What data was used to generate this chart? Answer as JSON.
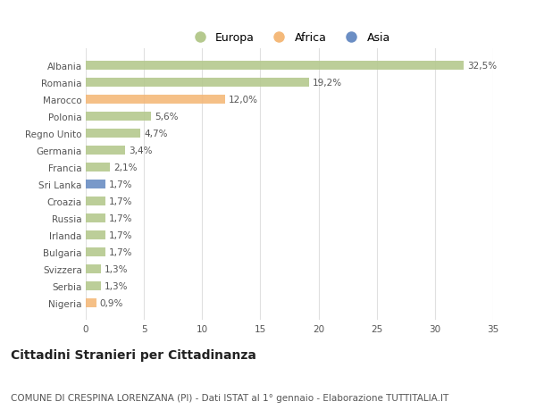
{
  "categories": [
    "Albania",
    "Romania",
    "Marocco",
    "Polonia",
    "Regno Unito",
    "Germania",
    "Francia",
    "Sri Lanka",
    "Croazia",
    "Russia",
    "Irlanda",
    "Bulgaria",
    "Svizzera",
    "Serbia",
    "Nigeria"
  ],
  "values": [
    32.5,
    19.2,
    12.0,
    5.6,
    4.7,
    3.4,
    2.1,
    1.7,
    1.7,
    1.7,
    1.7,
    1.7,
    1.3,
    1.3,
    0.9
  ],
  "labels": [
    "32,5%",
    "19,2%",
    "12,0%",
    "5,6%",
    "4,7%",
    "3,4%",
    "2,1%",
    "1,7%",
    "1,7%",
    "1,7%",
    "1,7%",
    "1,7%",
    "1,3%",
    "1,3%",
    "0,9%"
  ],
  "bar_colors": [
    "#b5c98e",
    "#b5c98e",
    "#f4b97a",
    "#b5c98e",
    "#b5c98e",
    "#b5c98e",
    "#b5c98e",
    "#6b8ec4",
    "#b5c98e",
    "#b5c98e",
    "#b5c98e",
    "#b5c98e",
    "#b5c98e",
    "#b5c98e",
    "#f4b97a"
  ],
  "legend_labels": [
    "Europa",
    "Africa",
    "Asia"
  ],
  "legend_colors": [
    "#b5c98e",
    "#f4b97a",
    "#6b8ec4"
  ],
  "title": "Cittadini Stranieri per Cittadinanza",
  "subtitle": "COMUNE DI CRESPINA LORENZANA (PI) - Dati ISTAT al 1° gennaio - Elaborazione TUTTITALIA.IT",
  "xlim": [
    0,
    35
  ],
  "xticks": [
    0,
    5,
    10,
    15,
    20,
    25,
    30,
    35
  ],
  "background_color": "#ffffff",
  "plot_bg_color": "#ffffff",
  "grid_color": "#e0e0e0",
  "bar_height": 0.55,
  "title_fontsize": 10,
  "subtitle_fontsize": 7.5,
  "label_fontsize": 7.5,
  "tick_fontsize": 7.5,
  "legend_fontsize": 9
}
